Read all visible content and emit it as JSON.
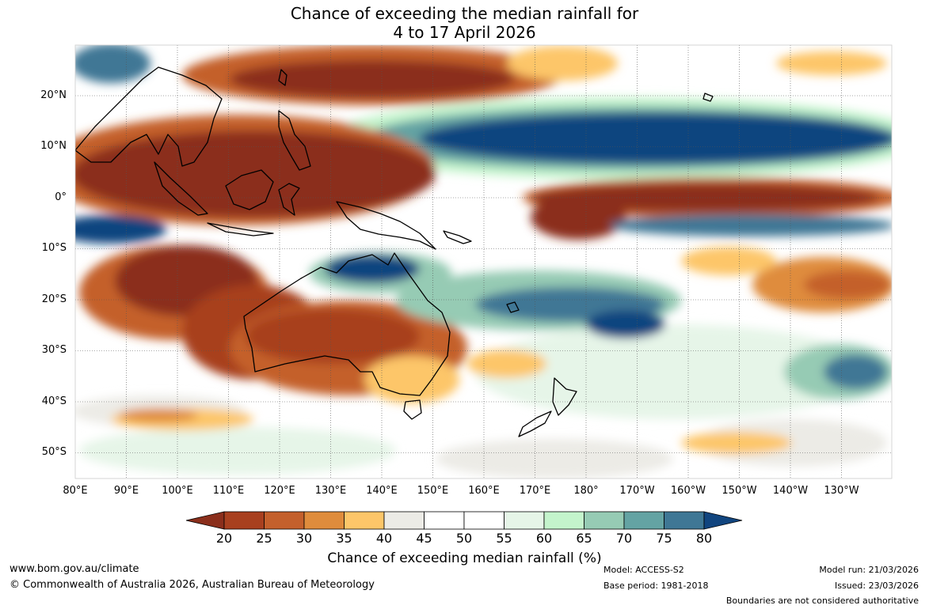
{
  "title": {
    "line1": "Chance of exceeding the median rainfall for",
    "line2": "4 to 17 April 2026"
  },
  "map": {
    "lat_labels": [
      "20°N",
      "10°N",
      "0°",
      "10°S",
      "20°S",
      "30°S",
      "40°S",
      "50°S"
    ],
    "lon_labels": [
      "80°E",
      "90°E",
      "100°E",
      "110°E",
      "120°E",
      "130°E",
      "140°E",
      "150°E",
      "160°E",
      "170°E",
      "180°",
      "170°W",
      "160°W",
      "150°W",
      "140°W",
      "130°W"
    ],
    "lat_values": [
      20,
      10,
      0,
      -10,
      -20,
      -30,
      -40,
      -50
    ],
    "lon_values": [
      80,
      90,
      100,
      110,
      120,
      130,
      140,
      150,
      160,
      170,
      180,
      190,
      200,
      210,
      220,
      230
    ],
    "lat_range": [
      -55,
      30
    ],
    "lon_range": [
      80,
      240
    ]
  },
  "legend": {
    "ticks": [
      "20",
      "25",
      "30",
      "35",
      "40",
      "45",
      "50",
      "55",
      "60",
      "65",
      "70",
      "75",
      "80"
    ],
    "colors": [
      "#8b2f1c",
      "#a8401f",
      "#c4602c",
      "#df8c3c",
      "#fdc669",
      "#ecebe6",
      "#ffffff",
      "#ffffff",
      "#e6f5e8",
      "#c4f4cc",
      "#96cbb4",
      "#64a3a3",
      "#3f7795",
      "#11457f"
    ],
    "label": "Chance of exceeding median rainfall (%)"
  },
  "footer": {
    "website": "www.bom.gov.au/climate",
    "copyright": "© Commonwealth of Australia 2026, Australian Bureau of Meteorology",
    "model": "Model: ACCESS-S2",
    "base_period": "Base period: 1981-2018",
    "model_run": "Model run: 21/03/2026",
    "issued": "Issued: 23/03/2026",
    "disclaimer": "Boundaries are not considered authoritative"
  }
}
